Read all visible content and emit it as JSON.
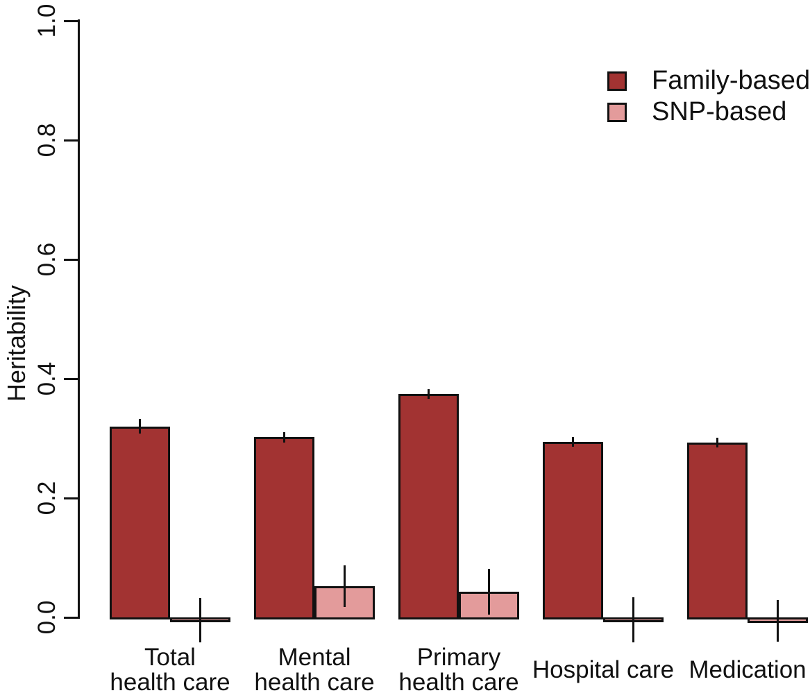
{
  "chart_data": {
    "type": "bar",
    "title": "",
    "xlabel": "",
    "ylabel": "Heritability",
    "ylim": [
      0.0,
      1.0
    ],
    "y_ticks": [
      "0.0",
      "0.2",
      "0.4",
      "0.6",
      "0.8",
      "1.0"
    ],
    "grid": false,
    "error_bars": true,
    "legend_position": "top-right",
    "axis_color": "#111111",
    "categories": [
      "Total health care",
      "Mental health care",
      "Primary health care",
      "Hospital care",
      "Medication"
    ],
    "categories_lines": [
      [
        "Total",
        "health care"
      ],
      [
        "Mental",
        "health care"
      ],
      [
        "Primary",
        "health care"
      ],
      [
        "Hospital care"
      ],
      [
        "Medication"
      ]
    ],
    "series": [
      {
        "name": "Family-based",
        "color": "#A23332",
        "values": [
          0.32,
          0.302,
          0.374,
          0.294,
          0.293
        ],
        "errors": [
          0.012,
          0.009,
          0.008,
          0.008,
          0.008
        ]
      },
      {
        "name": "SNP-based",
        "color": "#E39B9B",
        "values": [
          -0.005,
          0.052,
          0.043,
          -0.004,
          -0.006
        ],
        "errors": [
          0.037,
          0.035,
          0.038,
          0.038,
          0.035
        ]
      }
    ]
  }
}
